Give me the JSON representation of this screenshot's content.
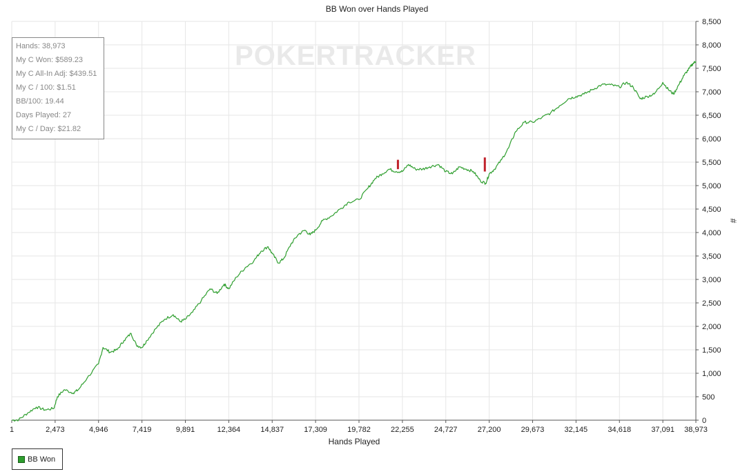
{
  "chart_data": {
    "type": "line",
    "title": "BB Won over Hands Played",
    "xlabel": "Hands Played",
    "ylabel": "#",
    "xlim": [
      1,
      38973
    ],
    "ylim": [
      0,
      8500
    ],
    "x_ticks": [
      1,
      2473,
      4946,
      7419,
      9891,
      12364,
      14837,
      17309,
      19782,
      22255,
      24727,
      27200,
      29673,
      32145,
      34618,
      37091,
      38973
    ],
    "x_tick_labels": [
      "1",
      "2,473",
      "4,946",
      "7,419",
      "9,891",
      "12,364",
      "14,837",
      "17,309",
      "19,782",
      "22,255",
      "24,727",
      "27,200",
      "29,673",
      "32,145",
      "34,618",
      "37,091",
      "38,973"
    ],
    "y_ticks": [
      0,
      500,
      1000,
      1500,
      2000,
      2500,
      3000,
      3500,
      4000,
      4500,
      5000,
      5500,
      6000,
      6500,
      7000,
      7500,
      8000,
      8500
    ],
    "y_tick_labels": [
      "0",
      "500",
      "1,000",
      "1,500",
      "2,000",
      "2,500",
      "3,000",
      "3,500",
      "4,000",
      "4,500",
      "5,000",
      "5,500",
      "6,000",
      "6,500",
      "7,000",
      "7,500",
      "8,000",
      "8,500"
    ],
    "grid": true,
    "series": [
      {
        "name": "BB Won",
        "color": "#2e9e2e",
        "x": [
          1,
          400,
          900,
          1400,
          1900,
          2400,
          2600,
          3000,
          3500,
          3800,
          4300,
          4946,
          5200,
          5600,
          6000,
          6400,
          6800,
          7100,
          7419,
          7700,
          8200,
          8700,
          9200,
          9600,
          9891,
          10300,
          10800,
          11300,
          11700,
          12100,
          12364,
          12800,
          13300,
          13800,
          14200,
          14600,
          14837,
          15200,
          15500,
          15900,
          16300,
          16700,
          17000,
          17309,
          17700,
          18200,
          18700,
          19200,
          19782,
          20300,
          20700,
          21100,
          21500,
          21900,
          22255,
          22600,
          23000,
          23400,
          23800,
          24300,
          24727,
          25100,
          25500,
          25900,
          26300,
          26700,
          27000,
          27200,
          27500,
          27900,
          28300,
          28700,
          29200,
          29673,
          30200,
          30700,
          31200,
          31700,
          32145,
          32600,
          33100,
          33600,
          34100,
          34618,
          35000,
          35400,
          35800,
          36200,
          36600,
          37091,
          37400,
          37700,
          38000,
          38300,
          38600,
          38800,
          38973
        ],
        "values": [
          0,
          10,
          150,
          280,
          220,
          250,
          500,
          650,
          580,
          650,
          900,
          1200,
          1550,
          1450,
          1500,
          1700,
          1850,
          1600,
          1550,
          1700,
          1950,
          2150,
          2250,
          2100,
          2150,
          2300,
          2550,
          2800,
          2700,
          2900,
          2800,
          3050,
          3250,
          3400,
          3600,
          3700,
          3550,
          3350,
          3450,
          3750,
          3950,
          4050,
          3950,
          4050,
          4250,
          4350,
          4500,
          4650,
          4700,
          4950,
          5150,
          5250,
          5350,
          5300,
          5300,
          5450,
          5350,
          5350,
          5400,
          5450,
          5300,
          5250,
          5400,
          5350,
          5300,
          5100,
          5050,
          5250,
          5350,
          5550,
          5800,
          6150,
          6350,
          6350,
          6450,
          6550,
          6700,
          6850,
          6900,
          6950,
          7050,
          7150,
          7150,
          7100,
          7200,
          7100,
          6850,
          6900,
          6950,
          7200,
          7050,
          6950,
          7150,
          7350,
          7500,
          7600,
          7650
        ]
      }
    ],
    "annotations": [
      {
        "type": "marker",
        "x": 22000,
        "y_from": 5350,
        "y_to": 5550,
        "color": "#c0202a"
      },
      {
        "type": "marker",
        "x": 26950,
        "y_from": 5300,
        "y_to": 5600,
        "color": "#c0202a"
      }
    ]
  },
  "stats": [
    "Hands: 38,973",
    "My C Won: $589.23",
    "My C All-In Adj: $439.51",
    "My C / 100: $1.51",
    "BB/100: 19.44",
    "Days Played: 27",
    "My C / Day: $21.82"
  ],
  "watermark": "POKERTRACKER",
  "legend": {
    "label": "BB Won",
    "color": "#2e9e2e"
  }
}
